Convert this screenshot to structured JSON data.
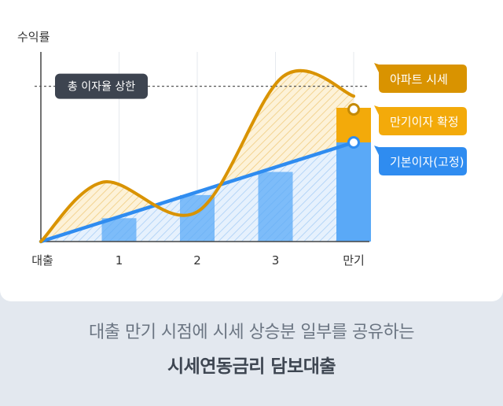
{
  "chart_data": {
    "type": "line",
    "ylabel": "수익률",
    "categories": [
      "대출",
      "1",
      "2",
      "3",
      "만기"
    ],
    "x": [
      0,
      1,
      2,
      3,
      4
    ],
    "series": [
      {
        "name": "아파트 시세",
        "color": "#d99300",
        "curve": "smooth",
        "points": [
          [
            0,
            0
          ],
          [
            0.8,
            0.36
          ],
          [
            2,
            0.18
          ],
          [
            3.1,
            1.0
          ],
          [
            4,
            0.88
          ]
        ]
      },
      {
        "name": "기본이자(고정)",
        "color": "#2f8cf0",
        "points": [
          [
            0,
            0
          ],
          [
            4,
            0.6
          ]
        ]
      }
    ],
    "bars": {
      "name": "기본이자(고정)",
      "values": [
        0.17,
        0.31,
        0.45,
        0.6
      ],
      "color": "#5aa9f7"
    },
    "highlight": {
      "name": "만기이자 확정",
      "x": 4,
      "from": 0.6,
      "to": 0.8,
      "color": "#f3aa0a"
    },
    "reference_line": {
      "label": "총 이자율 상한",
      "y": 0.94
    },
    "legend": [
      {
        "label": "아파트 시세",
        "color": "#d99300"
      },
      {
        "label": "만기이자 확정",
        "color": "#f3aa0a"
      },
      {
        "label": "기본이자(고정)",
        "color": "#2f8cf0"
      }
    ]
  },
  "caption": {
    "line1": "대출 만기 시점에 시세 상승분 일부를 공유하는",
    "line2": "시세연동금리 담보대출"
  }
}
